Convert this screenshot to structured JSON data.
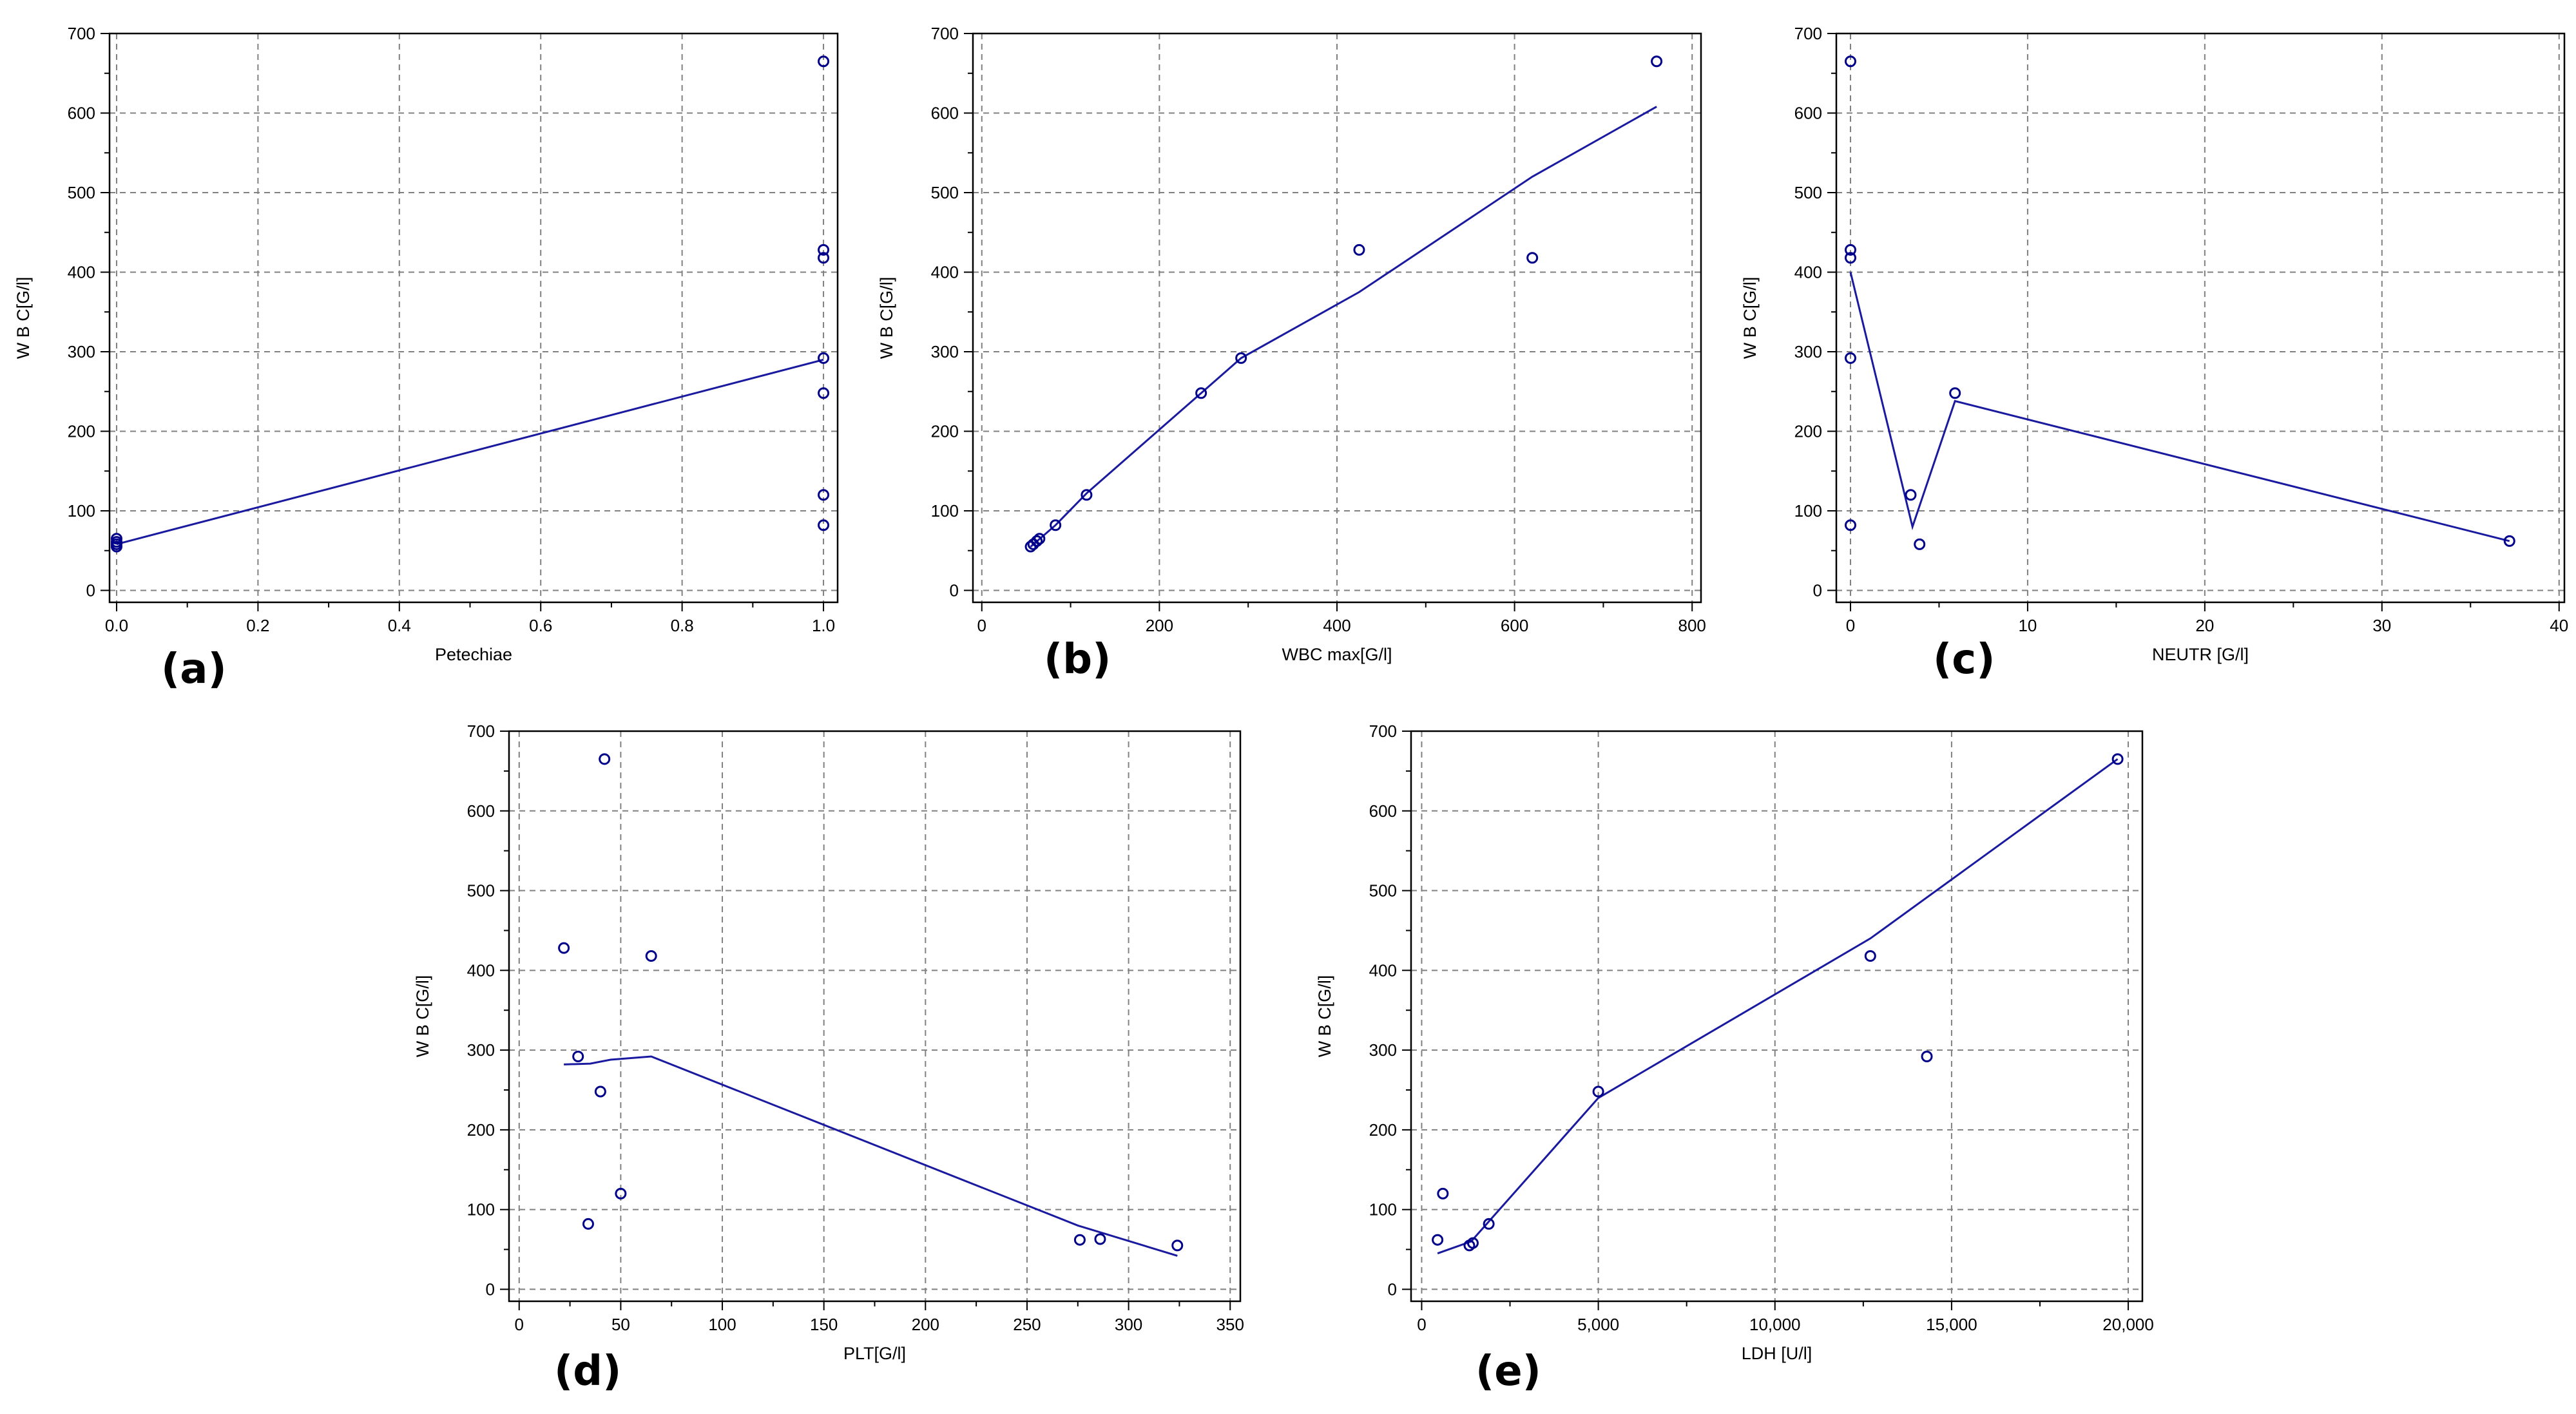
{
  "chart_data": [
    {
      "id": "a",
      "type": "scatter",
      "panel_label": "(a)",
      "xlabel": "Petechiae",
      "ylabel": "W B C[G/l]",
      "xlim": [
        -0.01,
        1.02
      ],
      "ylim": [
        -15,
        700
      ],
      "xticks": [
        0.0,
        0.2,
        0.4,
        0.6,
        0.8,
        1.0
      ],
      "xtick_labels": [
        "0.0",
        "0.2",
        "0.4",
        "0.6",
        "0.8",
        "1.0"
      ],
      "yticks": [
        0,
        100,
        200,
        300,
        400,
        500,
        600,
        700
      ],
      "ytick_labels": [
        "0",
        "100",
        "200",
        "300",
        "400",
        "500",
        "600",
        "700"
      ],
      "grid": true,
      "points": [
        [
          0,
          65
        ],
        [
          0,
          61
        ],
        [
          0,
          58
        ],
        [
          0,
          55
        ],
        [
          1,
          665
        ],
        [
          1,
          428
        ],
        [
          1,
          418
        ],
        [
          1,
          292
        ],
        [
          1,
          248
        ],
        [
          1,
          120
        ],
        [
          1,
          82
        ]
      ],
      "fit": [
        [
          0,
          58
        ],
        [
          1,
          290
        ]
      ]
    },
    {
      "id": "b",
      "type": "scatter",
      "panel_label": "(b)",
      "xlabel": "WBC max[G/l]",
      "ylabel": "W B C[G/l]",
      "xlim": [
        -10,
        810
      ],
      "ylim": [
        -15,
        700
      ],
      "xticks": [
        0,
        200,
        400,
        600,
        800
      ],
      "xtick_labels": [
        "0",
        "200",
        "400",
        "600",
        "800"
      ],
      "yticks": [
        0,
        100,
        200,
        300,
        400,
        500,
        600,
        700
      ],
      "ytick_labels": [
        "0",
        "100",
        "200",
        "300",
        "400",
        "500",
        "600",
        "700"
      ],
      "grid": true,
      "points": [
        [
          55,
          55
        ],
        [
          58,
          58
        ],
        [
          62,
          62
        ],
        [
          65,
          65
        ],
        [
          83,
          82
        ],
        [
          118,
          120
        ],
        [
          247,
          248
        ],
        [
          292,
          292
        ],
        [
          425,
          428
        ],
        [
          620,
          418
        ],
        [
          760,
          665
        ]
      ],
      "fit": [
        [
          55,
          55
        ],
        [
          83,
          82
        ],
        [
          118,
          122
        ],
        [
          247,
          248
        ],
        [
          292,
          292
        ],
        [
          425,
          375
        ],
        [
          620,
          520
        ],
        [
          760,
          608
        ]
      ]
    },
    {
      "id": "c",
      "type": "scatter",
      "panel_label": "(c)",
      "xlabel": "NEUTR [G/l]",
      "ylabel": "W B C[G/l]",
      "xlim": [
        -0.8,
        40.3
      ],
      "ylim": [
        -15,
        700
      ],
      "xticks": [
        0,
        10,
        20,
        30,
        40
      ],
      "xtick_labels": [
        "0",
        "10",
        "20",
        "30",
        "40"
      ],
      "yticks": [
        0,
        100,
        200,
        300,
        400,
        500,
        600,
        700
      ],
      "ytick_labels": [
        "0",
        "100",
        "200",
        "300",
        "400",
        "500",
        "600",
        "700"
      ],
      "grid": true,
      "points": [
        [
          0,
          665
        ],
        [
          0,
          428
        ],
        [
          0,
          418
        ],
        [
          0,
          292
        ],
        [
          0,
          82
        ],
        [
          3.4,
          120
        ],
        [
          3.9,
          58
        ],
        [
          5.9,
          248
        ],
        [
          37.2,
          62
        ]
      ],
      "fit": [
        [
          0,
          400
        ],
        [
          3.5,
          80
        ],
        [
          5.9,
          238
        ],
        [
          37.2,
          62
        ]
      ]
    },
    {
      "id": "d",
      "type": "scatter",
      "panel_label": "(d)",
      "xlabel": "PLT[G/l]",
      "ylabel": "W B C[G/l]",
      "xlim": [
        -5,
        355
      ],
      "ylim": [
        -15,
        700
      ],
      "xticks": [
        0,
        50,
        100,
        150,
        200,
        250,
        300,
        350
      ],
      "xtick_labels": [
        "0",
        "50",
        "100",
        "150",
        "200",
        "250",
        "300",
        "350"
      ],
      "yticks": [
        0,
        100,
        200,
        300,
        400,
        500,
        600,
        700
      ],
      "ytick_labels": [
        "0",
        "100",
        "200",
        "300",
        "400",
        "500",
        "600",
        "700"
      ],
      "grid": true,
      "points": [
        [
          42,
          665
        ],
        [
          22,
          428
        ],
        [
          65,
          418
        ],
        [
          29,
          292
        ],
        [
          40,
          248
        ],
        [
          50,
          120
        ],
        [
          34,
          82
        ],
        [
          276,
          62
        ],
        [
          286,
          63
        ],
        [
          324,
          55
        ]
      ],
      "fit": [
        [
          22,
          282
        ],
        [
          35,
          283
        ],
        [
          45,
          288
        ],
        [
          65,
          292
        ],
        [
          275,
          80
        ],
        [
          324,
          42
        ]
      ]
    },
    {
      "id": "e",
      "type": "scatter",
      "panel_label": "(e)",
      "xlabel": "LDH [U/l]",
      "ylabel": "W B C[G/l]",
      "xlim": [
        -300,
        20400
      ],
      "ylim": [
        -15,
        700
      ],
      "xticks": [
        0,
        5000,
        10000,
        15000,
        20000
      ],
      "xtick_labels": [
        "0",
        "5,000",
        "10,000",
        "15,000",
        "20,000"
      ],
      "yticks": [
        0,
        100,
        200,
        300,
        400,
        500,
        600,
        700
      ],
      "ytick_labels": [
        "0",
        "100",
        "200",
        "300",
        "400",
        "500",
        "600",
        "700"
      ],
      "grid": true,
      "points": [
        [
          450,
          62
        ],
        [
          600,
          120
        ],
        [
          1350,
          55
        ],
        [
          1450,
          58
        ],
        [
          1900,
          82
        ],
        [
          5000,
          248
        ],
        [
          12700,
          418
        ],
        [
          14300,
          292
        ],
        [
          19700,
          665
        ]
      ],
      "fit": [
        [
          450,
          45
        ],
        [
          1400,
          60
        ],
        [
          5000,
          240
        ],
        [
          12700,
          440
        ],
        [
          19700,
          665
        ]
      ]
    }
  ]
}
